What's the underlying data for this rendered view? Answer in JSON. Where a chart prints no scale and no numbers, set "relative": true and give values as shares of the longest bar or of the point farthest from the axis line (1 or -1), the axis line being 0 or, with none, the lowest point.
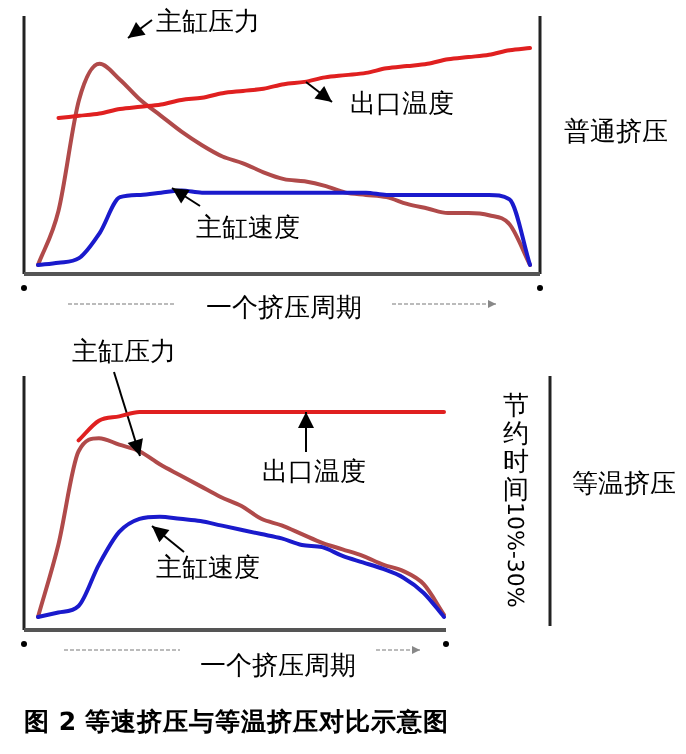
{
  "chart_data": [
    {
      "type": "line",
      "relative": true,
      "categories": [
        null,
        null,
        null,
        null,
        null,
        null,
        null,
        null,
        null,
        null,
        null,
        null,
        null,
        null,
        null,
        null,
        null,
        null,
        null,
        null,
        null,
        null,
        null,
        null,
        null
      ],
      "series": [
        {
          "name": "主缸压力",
          "color": "#b04a4a",
          "values": [
            0.04,
            0.28,
            0.77,
            0.93,
            0.86,
            0.77,
            0.7,
            0.63,
            0.57,
            0.52,
            0.49,
            0.45,
            0.42,
            0.41,
            0.39,
            0.36,
            0.35,
            0.34,
            0.31,
            0.29,
            0.27,
            0.27,
            0.26,
            0.22,
            0.04
          ]
        },
        {
          "name": "出口温度",
          "color": "#e02020",
          "values": [
            null,
            0.69,
            0.7,
            0.71,
            0.73,
            0.74,
            0.75,
            0.77,
            0.78,
            0.8,
            0.81,
            0.82,
            0.84,
            0.85,
            0.87,
            0.88,
            0.89,
            0.91,
            0.92,
            0.93,
            0.95,
            0.96,
            0.97,
            0.99,
            1
          ]
        },
        {
          "name": "主缸速度",
          "color": "#1a1acc",
          "values": [
            0.04,
            0.05,
            0.07,
            0.18,
            0.34,
            0.35,
            0.36,
            0.37,
            0.36,
            0.36,
            0.36,
            0.36,
            0.36,
            0.36,
            0.36,
            0.36,
            0.36,
            0.35,
            0.35,
            0.35,
            0.35,
            0.35,
            0.35,
            0.33,
            0.04
          ]
        }
      ],
      "xlabel": "一个挤压周期",
      "annotations": [
        "普通挤压"
      ]
    },
    {
      "type": "line",
      "relative": true,
      "categories": [
        null,
        null,
        null,
        null,
        null,
        null,
        null,
        null,
        null,
        null,
        null,
        null,
        null,
        null,
        null,
        null,
        null,
        null,
        null,
        null,
        null
      ],
      "series": [
        {
          "name": "主缸压力",
          "color": "#b04a4a",
          "values": [
            0.06,
            0.39,
            0.82,
            0.88,
            0.85,
            0.82,
            0.76,
            0.71,
            0.66,
            0.61,
            0.57,
            0.51,
            0.48,
            0.44,
            0.4,
            0.37,
            0.34,
            0.3,
            0.27,
            0.21,
            0.07
          ]
        },
        {
          "name": "出口温度",
          "color": "#e02020",
          "values": [
            null,
            null,
            0.87,
            0.96,
            0.98,
            1,
            1,
            1,
            1,
            1,
            1,
            1,
            1,
            1,
            1,
            1,
            1,
            1,
            1,
            1,
            1
          ]
        },
        {
          "name": "主缸速度",
          "color": "#1a1acc",
          "values": [
            0.06,
            0.08,
            0.11,
            0.3,
            0.45,
            0.51,
            0.52,
            0.51,
            0.5,
            0.48,
            0.46,
            0.44,
            0.42,
            0.39,
            0.38,
            0.34,
            0.31,
            0.28,
            0.24,
            0.17,
            0.06
          ]
        }
      ],
      "xlabel": "一个挤压周期",
      "annotations": [
        "节约时间 10%-30%",
        "等温挤压",
        "图 2 等速挤压与等温挤压对比示意图"
      ]
    }
  ]
}
